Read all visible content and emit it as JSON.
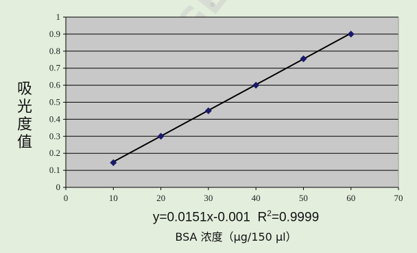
{
  "chart_data": {
    "type": "scatter",
    "xlabel": "BSA 浓度（μg/150 μl）",
    "ylabel": "吸光度值",
    "xlim": [
      0,
      70
    ],
    "ylim": [
      0,
      1
    ],
    "xticks": [
      "0",
      "10",
      "20",
      "30",
      "40",
      "50",
      "60",
      "70"
    ],
    "yticks": [
      "0",
      "0.1",
      "0.2",
      "0.3",
      "0.4",
      "0.5",
      "0.6",
      "0.7",
      "0.8",
      "0.9",
      "1"
    ],
    "grid": "horizontal",
    "series": [
      {
        "x": [
          10,
          20,
          30,
          40,
          50,
          60
        ],
        "y": [
          0.145,
          0.3,
          0.45,
          0.6,
          0.755,
          0.9
        ],
        "marker_color": "#1a1a6a"
      }
    ],
    "trendline": {
      "slope": 0.0151,
      "intercept": -0.001,
      "x_range": [
        10,
        60
      ],
      "color": "#000000"
    },
    "equation": "y=0.0151x-0.001",
    "r2_prefix": "R",
    "r2_sup": "2",
    "r2_suffix": "=0.9999",
    "plot_background": "#c8c8c8",
    "page_background": "#e3eedd"
  },
  "watermark": {
    "text": "TIANGEN",
    "mark": "®"
  }
}
